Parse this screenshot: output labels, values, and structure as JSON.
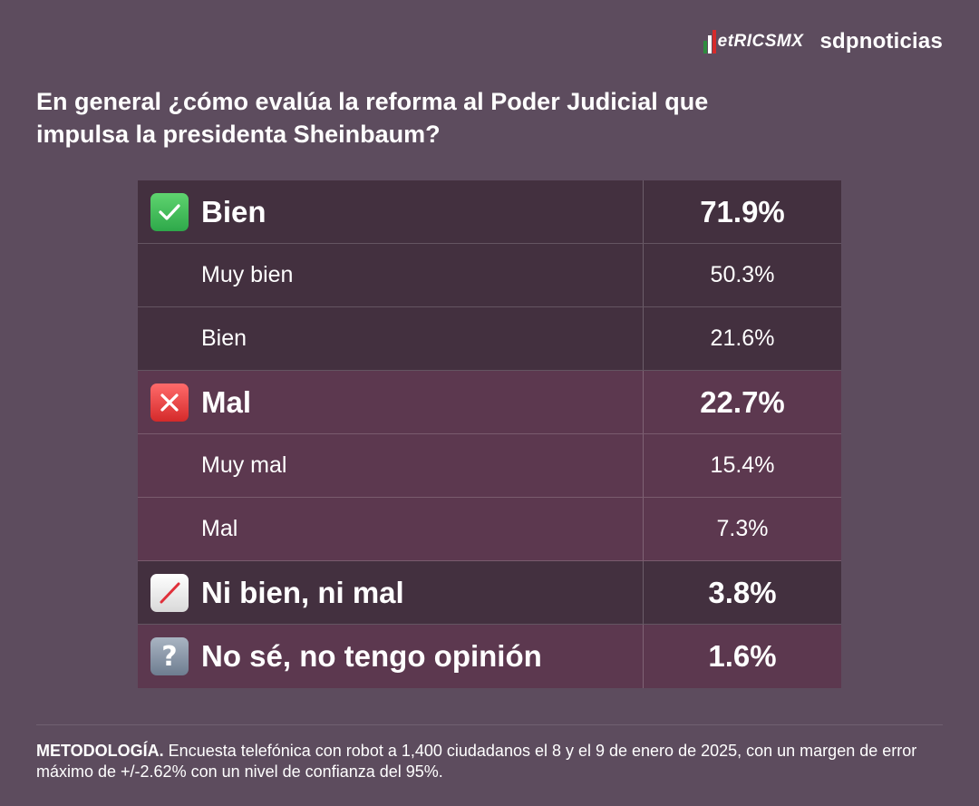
{
  "brand": {
    "metrics": "etRICSMX",
    "sdp": "sdpnoticias"
  },
  "question": "En general ¿cómo evalúa la reforma al Poder Judicial que impulsa la presidenta Sheinbaum?",
  "chart_data": {
    "type": "table",
    "rows": [
      {
        "label": "Bien",
        "value": "71.9%",
        "level": "main",
        "icon": "check-mark-icon",
        "color": "#43303f"
      },
      {
        "label": "Muy bien",
        "value": "50.3%",
        "level": "sub",
        "color": "#43303f"
      },
      {
        "label": "Bien",
        "value": "21.6%",
        "level": "sub",
        "color": "#43303f"
      },
      {
        "label": "Mal",
        "value": "22.7%",
        "level": "main",
        "icon": "cross-mark-icon",
        "color": "#5c384f"
      },
      {
        "label": "Muy mal",
        "value": "15.4%",
        "level": "sub",
        "color": "#5c384f"
      },
      {
        "label": "Mal",
        "value": "7.3%",
        "level": "sub",
        "color": "#5c384f"
      },
      {
        "label": "Ni bien, ni mal",
        "value": "3.8%",
        "level": "main",
        "icon": "slash-icon",
        "color": "#43303f"
      },
      {
        "label": "No sé, no tengo opinión",
        "value": "1.6%",
        "level": "main",
        "icon": "question-mark-icon",
        "color": "#5c384f"
      }
    ]
  },
  "methodology": {
    "label": "METODOLOGÍA.",
    "text": " Encuesta telefónica con robot a 1,400 ciudadanos el 8 y el 9 de enero de 2025, con un margen de error máximo de +/-2.62% con un nivel de confianza del 95%."
  },
  "colors": {
    "background": "#5d4c5e",
    "row_dark": "#43303f",
    "row_wine": "#5c384f"
  }
}
